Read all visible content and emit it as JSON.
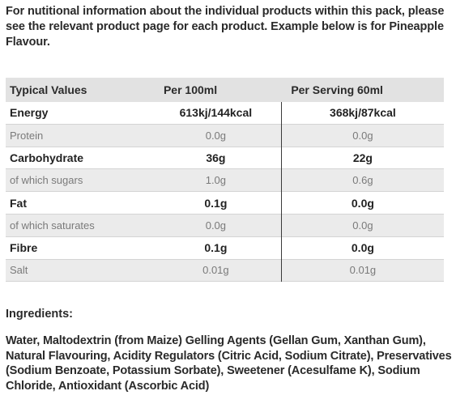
{
  "intro": {
    "text": "For nutitional information about the individual products within this pack, please see the relevant product page for each product. Example below is for Pineapple Flavour."
  },
  "table": {
    "headers": {
      "label": "Typical Values",
      "per100": "Per 100ml",
      "perServing": "Per Serving 60ml"
    },
    "rows": [
      {
        "label": "Energy",
        "per100": "613kj/144kcal",
        "perServing": "368kj/87kcal"
      },
      {
        "label": "Protein",
        "per100": "0.0g",
        "perServing": "0.0g"
      },
      {
        "label": "Carbohydrate",
        "per100": "36g",
        "perServing": "22g"
      },
      {
        "label": "of which sugars",
        "per100": "1.0g",
        "perServing": "0.6g"
      },
      {
        "label": "Fat",
        "per100": "0.1g",
        "perServing": "0.0g"
      },
      {
        "label": "of which saturates",
        "per100": "0.0g",
        "perServing": "0.0g"
      },
      {
        "label": "Fibre",
        "per100": "0.1g",
        "perServing": "0.0g"
      },
      {
        "label": "Salt",
        "per100": "0.01g",
        "perServing": "0.01g"
      }
    ]
  },
  "ingredients": {
    "heading": "Ingredients:",
    "text": "Water, Maltodextrin (from Maize) Gelling Agents (Gellan Gum, Xanthan Gum), Natural Flavouring, Acidity Regulators (Citric Acid, Sodium Citrate), Preservatives (Sodium Benzoate, Potassium Sorbate), Sweetener (Acesulfame K), Sodium Chloride, Antioxidant (Ascorbic Acid)"
  },
  "colors": {
    "header_bg": "#e2e2e2",
    "row_shade": "#ebebeb",
    "text": "#2a2a2a",
    "muted_text": "#7a7a7a"
  }
}
